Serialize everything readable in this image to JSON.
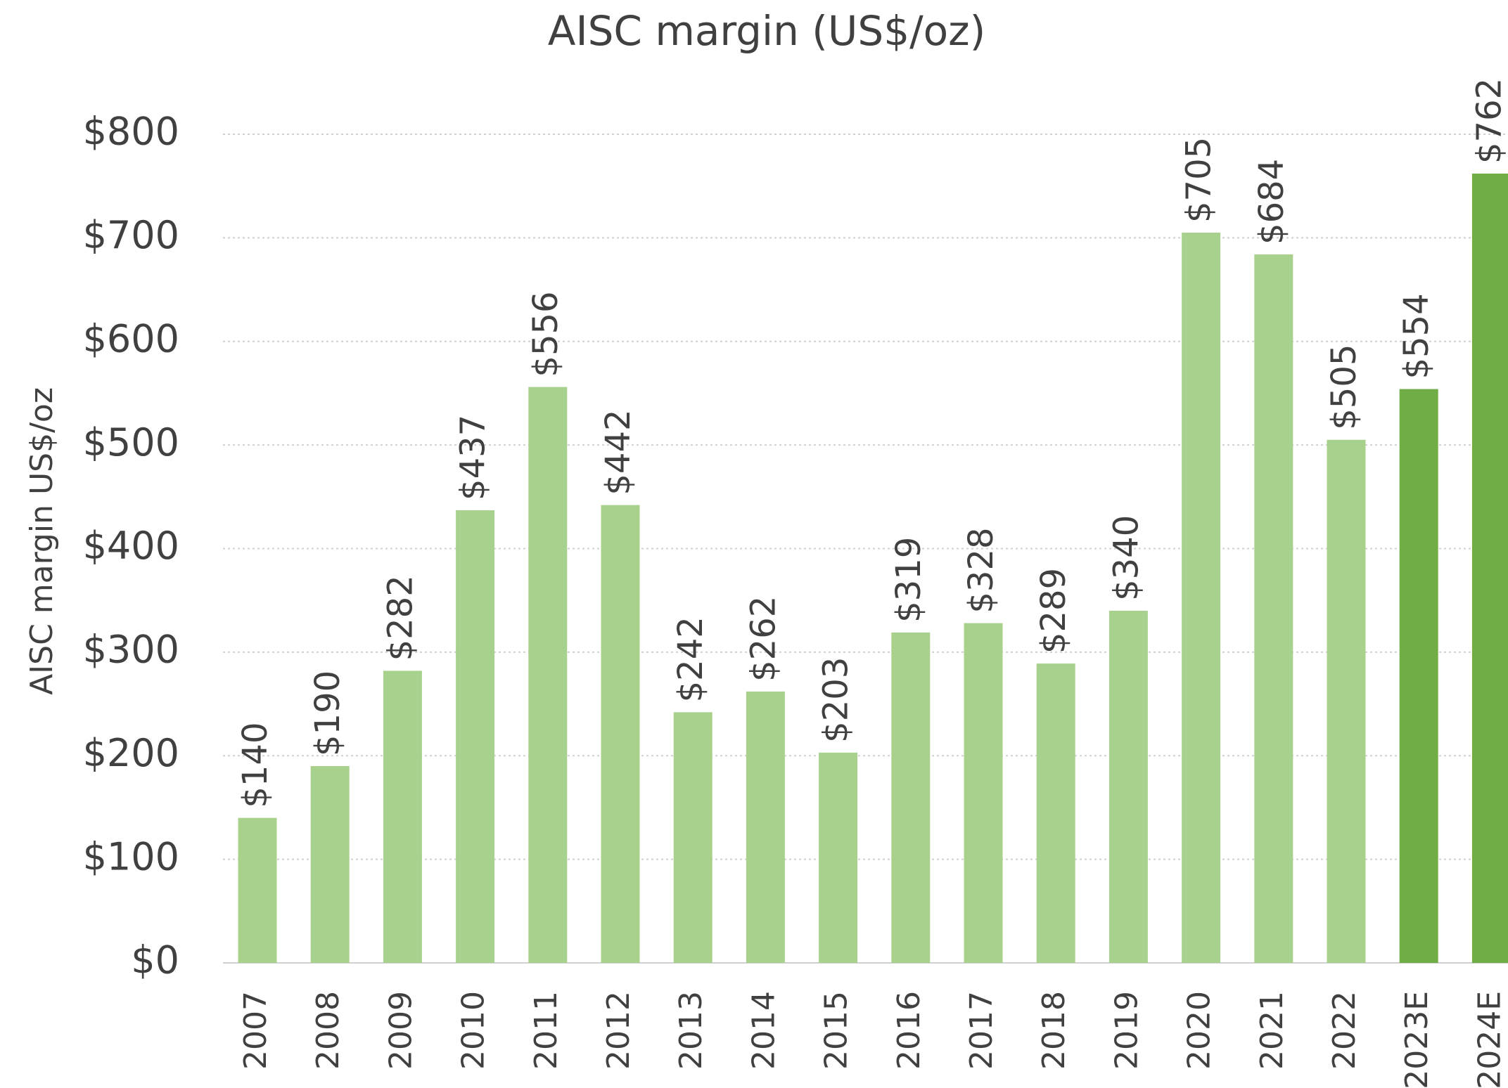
{
  "chart_data": {
    "type": "bar",
    "title": "AISC margin (US$/oz)",
    "y_label": "AISC margin US$/oz",
    "categories": [
      "2007",
      "2008",
      "2009",
      "2010",
      "2011",
      "2012",
      "2013",
      "2014",
      "2015",
      "2016",
      "2017",
      "2018",
      "2019",
      "2020",
      "2021",
      "2022",
      "2023E",
      "2024E"
    ],
    "values": [
      140,
      190,
      282,
      437,
      556,
      442,
      242,
      262,
      203,
      319,
      328,
      289,
      340,
      705,
      684,
      505,
      554,
      762
    ],
    "value_labels": [
      "$140",
      "$190",
      "$282",
      "$437",
      "$556",
      "$442",
      "$242",
      "$262",
      "$203",
      "$319",
      "$328",
      "$289",
      "$340",
      "$705",
      "$684",
      "$505",
      "$554",
      "$762"
    ],
    "colors": [
      "#a9d18e",
      "#a9d18e",
      "#a9d18e",
      "#a9d18e",
      "#a9d18e",
      "#a9d18e",
      "#a9d18e",
      "#a9d18e",
      "#a9d18e",
      "#a9d18e",
      "#a9d18e",
      "#a9d18e",
      "#a9d18e",
      "#a9d18e",
      "#a9d18e",
      "#a9d18e",
      "#70ad47",
      "#70ad47"
    ],
    "ylim": [
      0,
      800
    ],
    "yticks": [
      {
        "value": 0,
        "label": "$0"
      },
      {
        "value": 100,
        "label": "$100"
      },
      {
        "value": 200,
        "label": "$200"
      },
      {
        "value": 300,
        "label": "$300"
      },
      {
        "value": 400,
        "label": "$400"
      },
      {
        "value": 500,
        "label": "$500"
      },
      {
        "value": 600,
        "label": "$600"
      },
      {
        "value": 700,
        "label": "$700"
      },
      {
        "value": 800,
        "label": "$800"
      }
    ],
    "grid": true
  }
}
